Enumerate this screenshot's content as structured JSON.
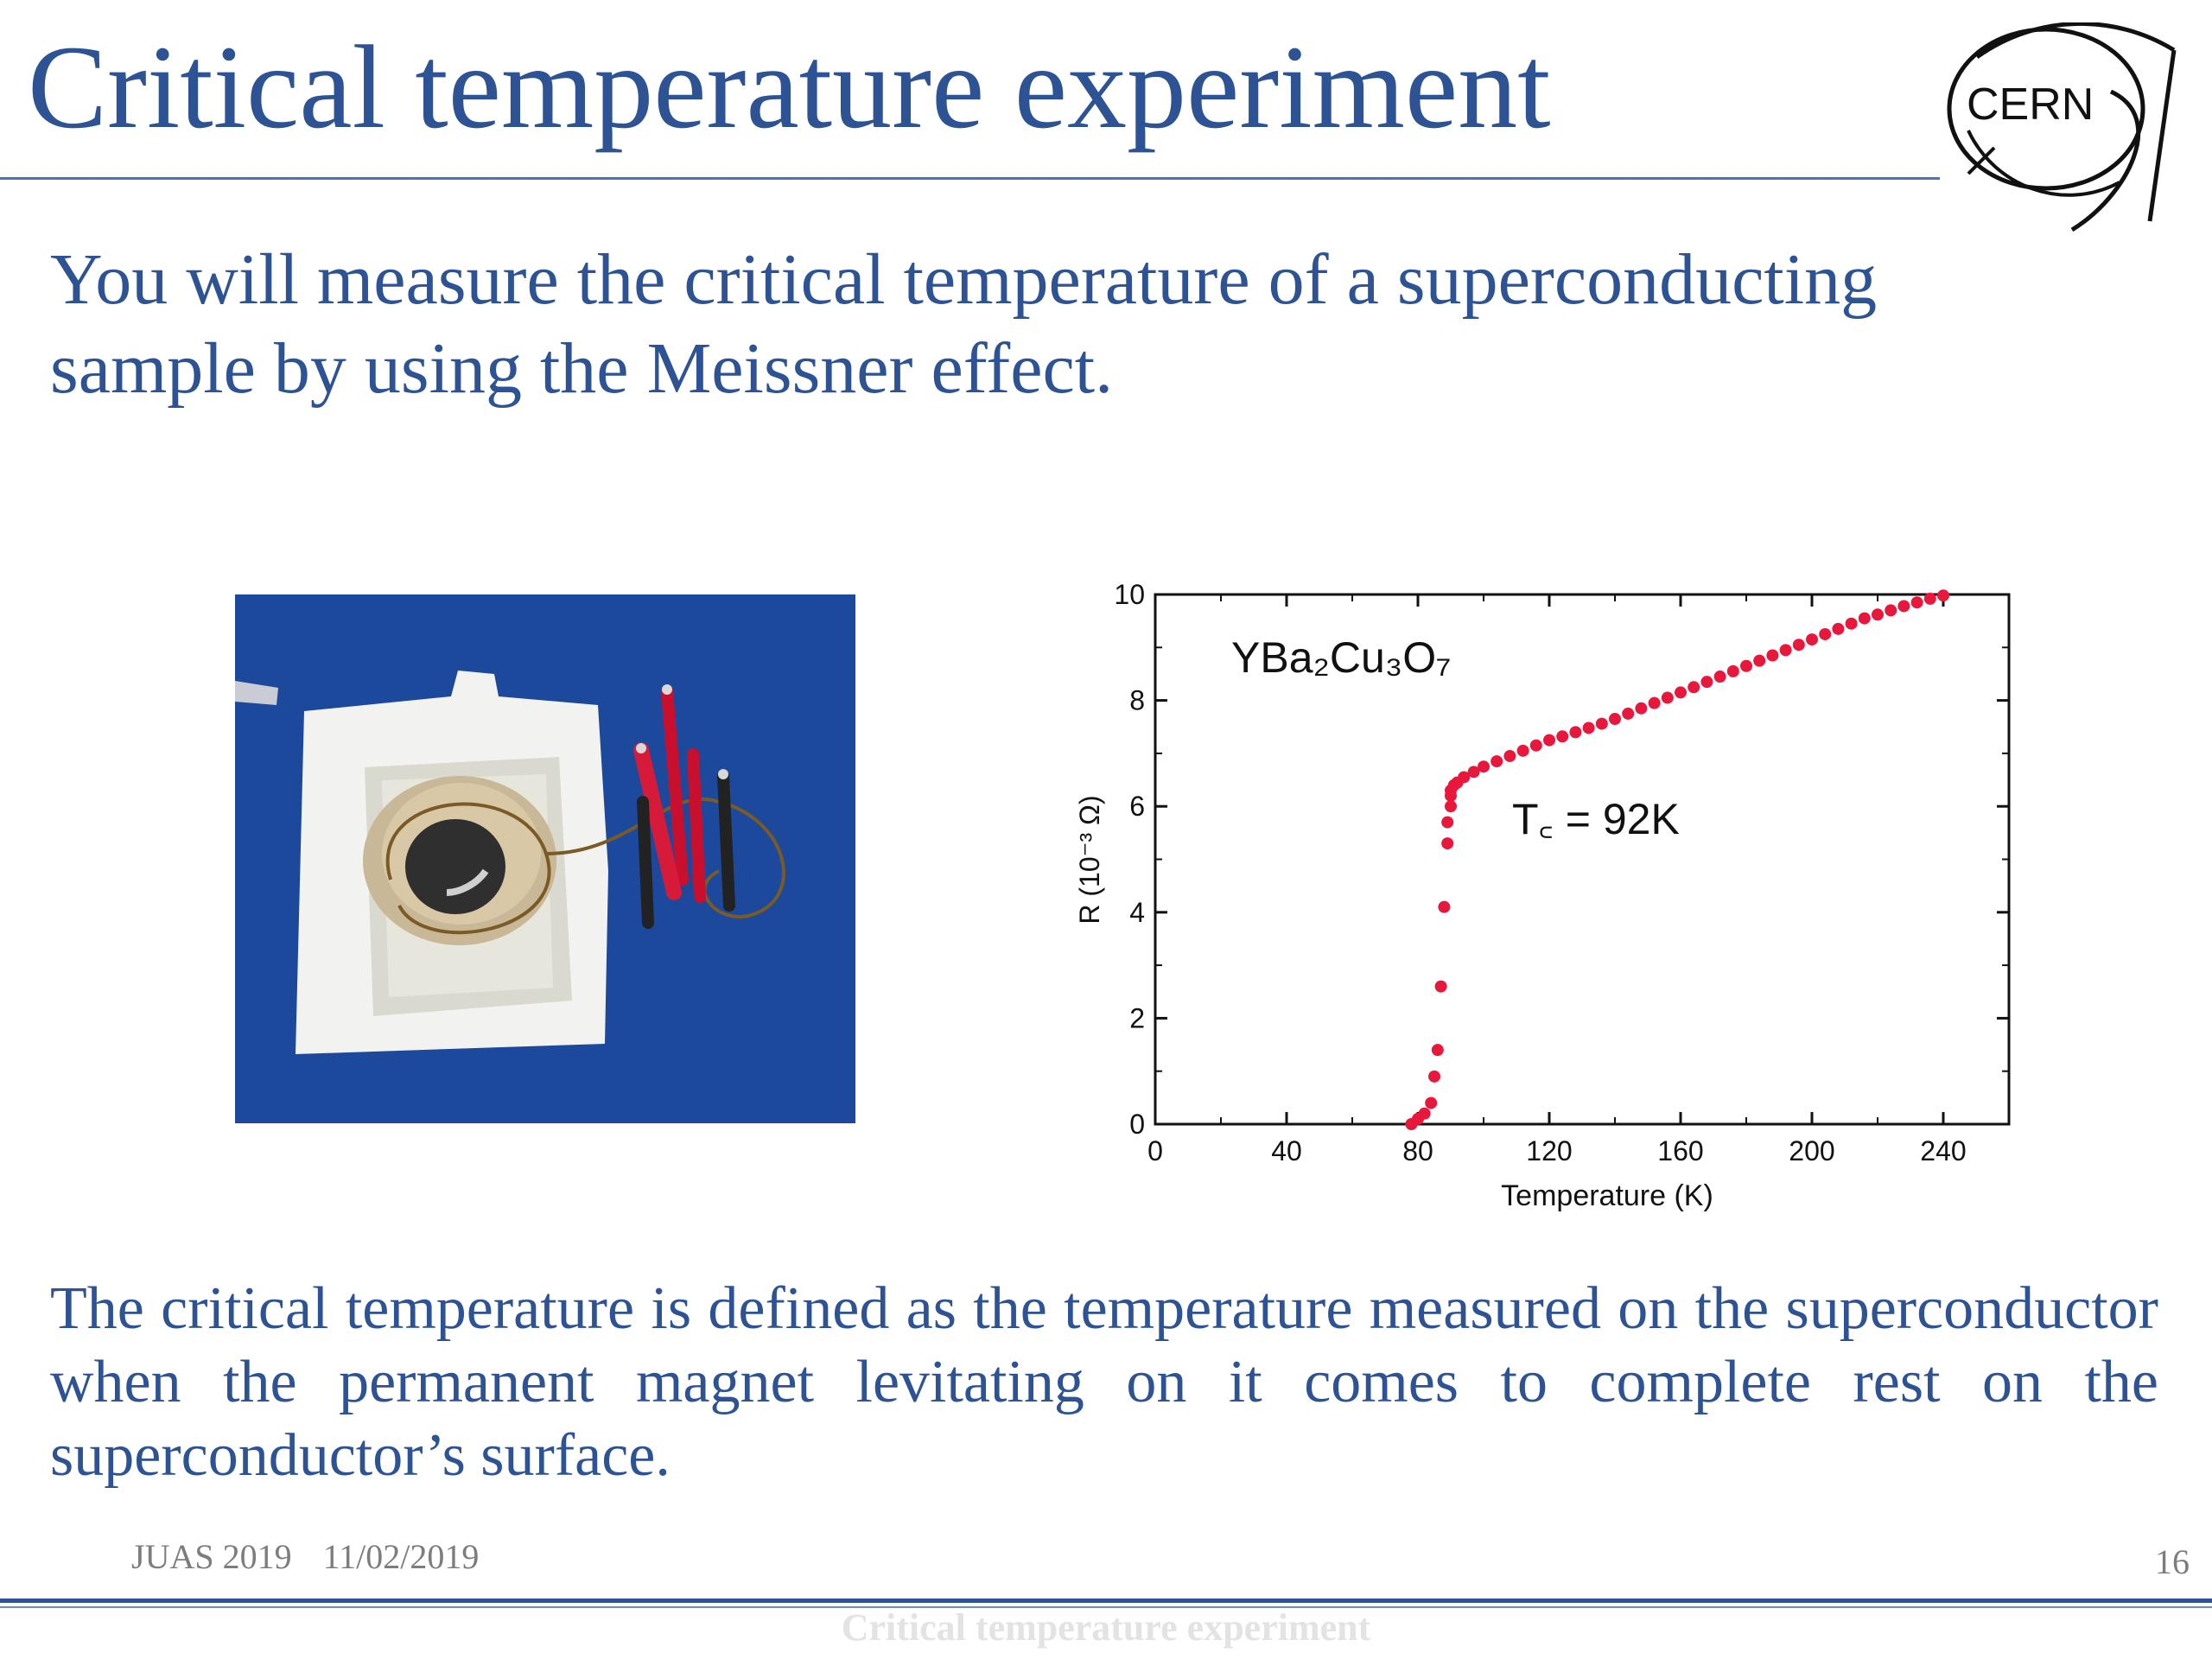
{
  "slide": {
    "title": "Critical temperature experiment",
    "intro": "You will measure the critical temperature of a superconducting sample by using the Meissner effect.",
    "definition": "The critical temperature is defined as the temperature measured on the superconductor when the permanent magnet levitating on it comes to complete rest on the superconductor’s surface.",
    "logo_text": "CERN"
  },
  "footer": {
    "event": "JUAS 2019",
    "date": "11/02/2019",
    "page_number": "16",
    "title": "Critical temperature experiment"
  },
  "colors": {
    "text_blue": "#2e5394",
    "rule_blue": "#4f73b4",
    "data_red": "#e8183c",
    "photo_background": "#1f4fa3"
  },
  "chart_data": {
    "type": "scatter",
    "xlabel": "Temperature (K)",
    "ylabel": "R (10⁻³ Ω)",
    "xlim": [
      0,
      260
    ],
    "ylim": [
      0,
      10
    ],
    "xticks": [
      0,
      40,
      80,
      120,
      160,
      200,
      240
    ],
    "yticks": [
      0,
      2,
      4,
      6,
      8,
      10
    ],
    "annotations": [
      {
        "text": "YBa₂Cu₃O₇"
      },
      {
        "text": "T꜀ = 92K"
      }
    ],
    "critical_temperature_K": 92,
    "grid": false,
    "x": [
      78,
      80,
      82,
      84,
      85,
      86,
      87,
      88,
      89,
      89,
      90,
      90,
      90,
      91,
      92,
      94,
      97,
      100,
      104,
      108,
      112,
      116,
      120,
      124,
      128,
      132,
      136,
      140,
      144,
      148,
      152,
      156,
      160,
      164,
      168,
      172,
      176,
      180,
      184,
      188,
      192,
      196,
      200,
      204,
      208,
      212,
      216,
      220,
      224,
      228,
      232,
      236,
      240
    ],
    "y": [
      0.0,
      0.1,
      0.2,
      0.4,
      0.9,
      1.4,
      2.6,
      4.1,
      5.3,
      5.7,
      6.0,
      6.2,
      6.3,
      6.4,
      6.45,
      6.55,
      6.65,
      6.75,
      6.85,
      6.95,
      7.05,
      7.15,
      7.25,
      7.32,
      7.4,
      7.48,
      7.56,
      7.65,
      7.75,
      7.85,
      7.95,
      8.05,
      8.15,
      8.25,
      8.35,
      8.45,
      8.55,
      8.65,
      8.75,
      8.85,
      8.95,
      9.05,
      9.15,
      9.25,
      9.35,
      9.45,
      9.55,
      9.62,
      9.7,
      9.78,
      9.85,
      9.92,
      9.98
    ]
  }
}
